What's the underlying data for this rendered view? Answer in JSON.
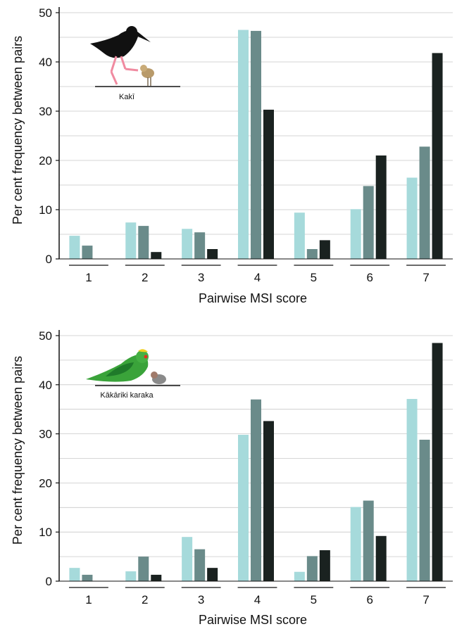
{
  "chart_data": [
    {
      "type": "bar",
      "species_label": "Kakī",
      "xlabel": "Pairwise MSI score",
      "ylabel": "Per cent frequency between pairs",
      "categories": [
        "1",
        "2",
        "3",
        "4",
        "5",
        "6",
        "7"
      ],
      "ylim": [
        0,
        50
      ],
      "yticks": [
        0,
        10,
        20,
        30,
        40,
        50
      ],
      "grid": true,
      "series": [
        {
          "color": "#a6dadb",
          "values": [
            4.7,
            7.4,
            6.1,
            46.5,
            9.4,
            10.1,
            16.5
          ]
        },
        {
          "color": "#6a8b8a",
          "values": [
            2.7,
            6.7,
            5.4,
            46.3,
            2.0,
            14.8,
            22.8
          ]
        },
        {
          "color": "#1a2220",
          "values": [
            0,
            1.4,
            2.0,
            30.3,
            3.8,
            21.0,
            41.8
          ]
        }
      ]
    },
    {
      "type": "bar",
      "species_label": "Kākāriki karaka",
      "xlabel": "Pairwise MSI score",
      "ylabel": "Per cent frequency between pairs",
      "categories": [
        "1",
        "2",
        "3",
        "4",
        "5",
        "6",
        "7"
      ],
      "ylim": [
        0,
        50
      ],
      "yticks": [
        0,
        10,
        20,
        30,
        40,
        50
      ],
      "grid": true,
      "series": [
        {
          "color": "#a6dadb",
          "values": [
            2.7,
            2.0,
            9.0,
            29.8,
            1.9,
            15.1,
            37.1
          ]
        },
        {
          "color": "#6a8b8a",
          "values": [
            1.3,
            5.0,
            6.5,
            37.0,
            5.1,
            16.4,
            28.8
          ]
        },
        {
          "color": "#1a2220",
          "values": [
            0,
            1.3,
            2.7,
            32.6,
            6.3,
            9.2,
            48.5
          ]
        }
      ]
    }
  ]
}
